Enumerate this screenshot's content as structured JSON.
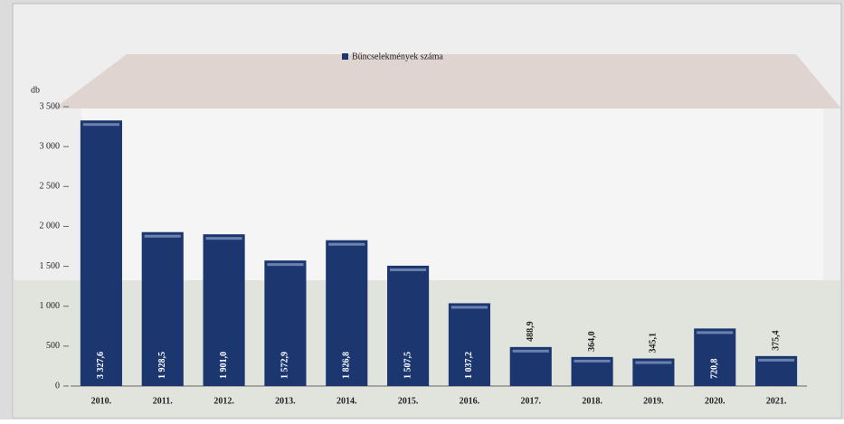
{
  "chart_data": {
    "type": "bar",
    "legend": "Bűncselekmények száma",
    "y_label": "db",
    "categories": [
      "2010.",
      "2011.",
      "2012.",
      "2013.",
      "2014.",
      "2015.",
      "2016.",
      "2017.",
      "2018.",
      "2019.",
      "2020.",
      "2021."
    ],
    "values": [
      3327.6,
      1928.5,
      1901.0,
      1572.9,
      1826.8,
      1507.5,
      1037.2,
      488.9,
      364.0,
      345.1,
      720.8,
      375.4
    ],
    "value_labels": [
      "3 327,6",
      "1 928,5",
      "1 901,0",
      "1 572,9",
      "1 826,8",
      "1 507,5",
      "1 037,2",
      "488,9",
      "364,0",
      "345,1",
      "720,8",
      "375,4"
    ],
    "color": "#1c3670",
    "ylim": [
      0,
      3500
    ],
    "yticks": [
      0,
      500,
      {
        "value": 1000,
        "label": "1 000"
      },
      {
        "value": 1500,
        "label": "1 500"
      },
      {
        "value": 2000,
        "label": "2 000"
      },
      {
        "value": 2500,
        "label": "2 500"
      },
      {
        "value": 3000,
        "label": "3 000"
      },
      {
        "value": 3500,
        "label": "3 500"
      }
    ]
  }
}
